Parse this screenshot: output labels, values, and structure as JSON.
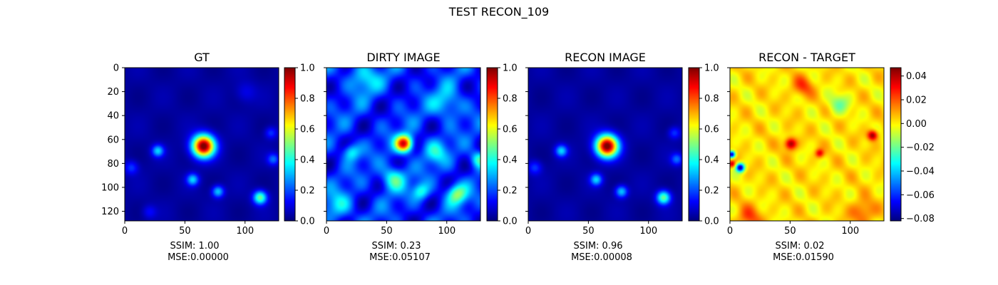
{
  "figure": {
    "title": "TEST RECON_109"
  },
  "chart_data": [
    {
      "type": "heatmap",
      "title": "GT",
      "xlim": [
        0,
        128
      ],
      "ylim": [
        128,
        0
      ],
      "x_ticks": [
        0,
        50,
        100
      ],
      "y_ticks": [
        0,
        20,
        40,
        60,
        80,
        100,
        120
      ],
      "colormap": "jet",
      "colorbar": {
        "range": [
          0.0,
          1.0
        ],
        "ticks": [
          0.0,
          0.2,
          0.4,
          0.6,
          0.8,
          1.0
        ],
        "tick_labels": [
          "0.0",
          "0.2",
          "0.4",
          "0.6",
          "0.8",
          "1.0"
        ]
      },
      "metrics": {
        "ssim_label": "SSIM: 1.00",
        "mse_label": "MSE:0.00000"
      },
      "sources": [
        {
          "x": 65,
          "y": 65,
          "amp": 1.0,
          "sigma": 6.5
        },
        {
          "x": 27,
          "y": 69,
          "amp": 0.3,
          "sigma": 3.5
        },
        {
          "x": 56,
          "y": 93,
          "amp": 0.3,
          "sigma": 3.5
        },
        {
          "x": 77,
          "y": 103,
          "amp": 0.3,
          "sigma": 3.5
        },
        {
          "x": 112,
          "y": 108,
          "amp": 0.45,
          "sigma": 4.0
        },
        {
          "x": 123,
          "y": 76,
          "amp": 0.2,
          "sigma": 3.5
        },
        {
          "x": 121,
          "y": 54,
          "amp": 0.15,
          "sigma": 3.5
        },
        {
          "x": 5,
          "y": 83,
          "amp": 0.15,
          "sigma": 4.0
        },
        {
          "x": 20,
          "y": 120,
          "amp": 0.1,
          "sigma": 4.0
        },
        {
          "x": 100,
          "y": 20,
          "amp": 0.08,
          "sigma": 6.0
        }
      ]
    },
    {
      "type": "heatmap",
      "title": "DIRTY IMAGE",
      "xlim": [
        0,
        128
      ],
      "ylim": [
        128,
        0
      ],
      "x_ticks": [
        0,
        50,
        100
      ],
      "y_ticks": [],
      "colormap": "jet",
      "colorbar": {
        "range": [
          0.0,
          1.0
        ],
        "ticks": [
          0.0,
          0.2,
          0.4,
          0.6,
          0.8,
          1.0
        ],
        "tick_labels": [
          "0.0",
          "0.2",
          "0.4",
          "0.6",
          "0.8",
          "1.0"
        ]
      },
      "metrics": {
        "ssim_label": "SSIM: 0.23",
        "mse_label": "MSE:0.05107"
      },
      "sources": [
        {
          "x": 64,
          "y": 63,
          "amp": 0.75,
          "sigma": 5.0
        },
        {
          "x": 108,
          "y": 105,
          "amp": 0.35,
          "sigma": 6.0
        },
        {
          "x": 55,
          "y": 92,
          "amp": 0.3,
          "sigma": 7.0
        },
        {
          "x": 20,
          "y": 70,
          "amp": 0.25,
          "sigma": 5.0
        },
        {
          "x": 126,
          "y": 76,
          "amp": 0.3,
          "sigma": 5.0
        },
        {
          "x": 78,
          "y": 103,
          "amp": 0.25,
          "sigma": 5.0
        },
        {
          "x": 30,
          "y": 8,
          "amp": 0.2,
          "sigma": 9.0
        },
        {
          "x": 100,
          "y": 30,
          "amp": 0.2,
          "sigma": 9.0
        },
        {
          "x": 10,
          "y": 115,
          "amp": 0.2,
          "sigma": 8.0
        },
        {
          "x": 90,
          "y": 70,
          "amp": 0.2,
          "sigma": 7.0
        }
      ]
    },
    {
      "type": "heatmap",
      "title": "RECON IMAGE",
      "xlim": [
        0,
        128
      ],
      "ylim": [
        128,
        0
      ],
      "x_ticks": [
        0,
        50,
        100
      ],
      "y_ticks": [],
      "colormap": "jet",
      "colorbar": {
        "range": [
          0.0,
          1.0
        ],
        "ticks": [
          0.0,
          0.2,
          0.4,
          0.6,
          0.8,
          1.0
        ],
        "tick_labels": [
          "0.0",
          "0.2",
          "0.4",
          "0.6",
          "0.8",
          "1.0"
        ]
      },
      "metrics": {
        "ssim_label": "SSIM: 0.96",
        "mse_label": "MSE:0.00008"
      },
      "sources": [
        {
          "x": 65,
          "y": 65,
          "amp": 1.0,
          "sigma": 6.5
        },
        {
          "x": 27,
          "y": 69,
          "amp": 0.3,
          "sigma": 3.5
        },
        {
          "x": 56,
          "y": 93,
          "amp": 0.3,
          "sigma": 3.5
        },
        {
          "x": 77,
          "y": 103,
          "amp": 0.3,
          "sigma": 3.5
        },
        {
          "x": 112,
          "y": 108,
          "amp": 0.45,
          "sigma": 4.0
        },
        {
          "x": 123,
          "y": 76,
          "amp": 0.2,
          "sigma": 3.5
        },
        {
          "x": 121,
          "y": 54,
          "amp": 0.15,
          "sigma": 3.5
        },
        {
          "x": 5,
          "y": 83,
          "amp": 0.15,
          "sigma": 4.0
        }
      ]
    },
    {
      "type": "heatmap",
      "title": "RECON - TARGET",
      "xlim": [
        0,
        128
      ],
      "ylim": [
        128,
        0
      ],
      "x_ticks": [
        0,
        50,
        100
      ],
      "y_ticks": [],
      "colormap": "jet",
      "colorbar": {
        "range": [
          -0.082,
          0.047
        ],
        "ticks": [
          -0.08,
          -0.06,
          -0.04,
          -0.02,
          0.0,
          0.02,
          0.04
        ],
        "tick_labels": [
          "−0.08",
          "−0.06",
          "−0.04",
          "−0.02",
          "0.00",
          "0.02",
          "0.04"
        ]
      },
      "metrics": {
        "ssim_label": "SSIM: 0.02",
        "mse_label": "MSE:0.01590"
      },
      "sources": [
        {
          "x": 50,
          "y": 63,
          "amp": 0.045,
          "sigma": 3.5
        },
        {
          "x": 118,
          "y": 56,
          "amp": 0.045,
          "sigma": 3.0
        },
        {
          "x": 74,
          "y": 71,
          "amp": 0.03,
          "sigma": 2.5
        },
        {
          "x": 8,
          "y": 83,
          "amp": -0.08,
          "sigma": 2.5
        },
        {
          "x": 1,
          "y": 72,
          "amp": -0.08,
          "sigma": 2.0
        },
        {
          "x": 1,
          "y": 80,
          "amp": 0.035,
          "sigma": 2.0
        },
        {
          "x": 60,
          "y": 15,
          "amp": 0.02,
          "sigma": 6.0
        },
        {
          "x": 15,
          "y": 125,
          "amp": 0.02,
          "sigma": 7.0
        },
        {
          "x": 110,
          "y": 120,
          "amp": 0.02,
          "sigma": 7.0
        },
        {
          "x": 90,
          "y": 30,
          "amp": -0.02,
          "sigma": 6.0
        }
      ]
    }
  ]
}
